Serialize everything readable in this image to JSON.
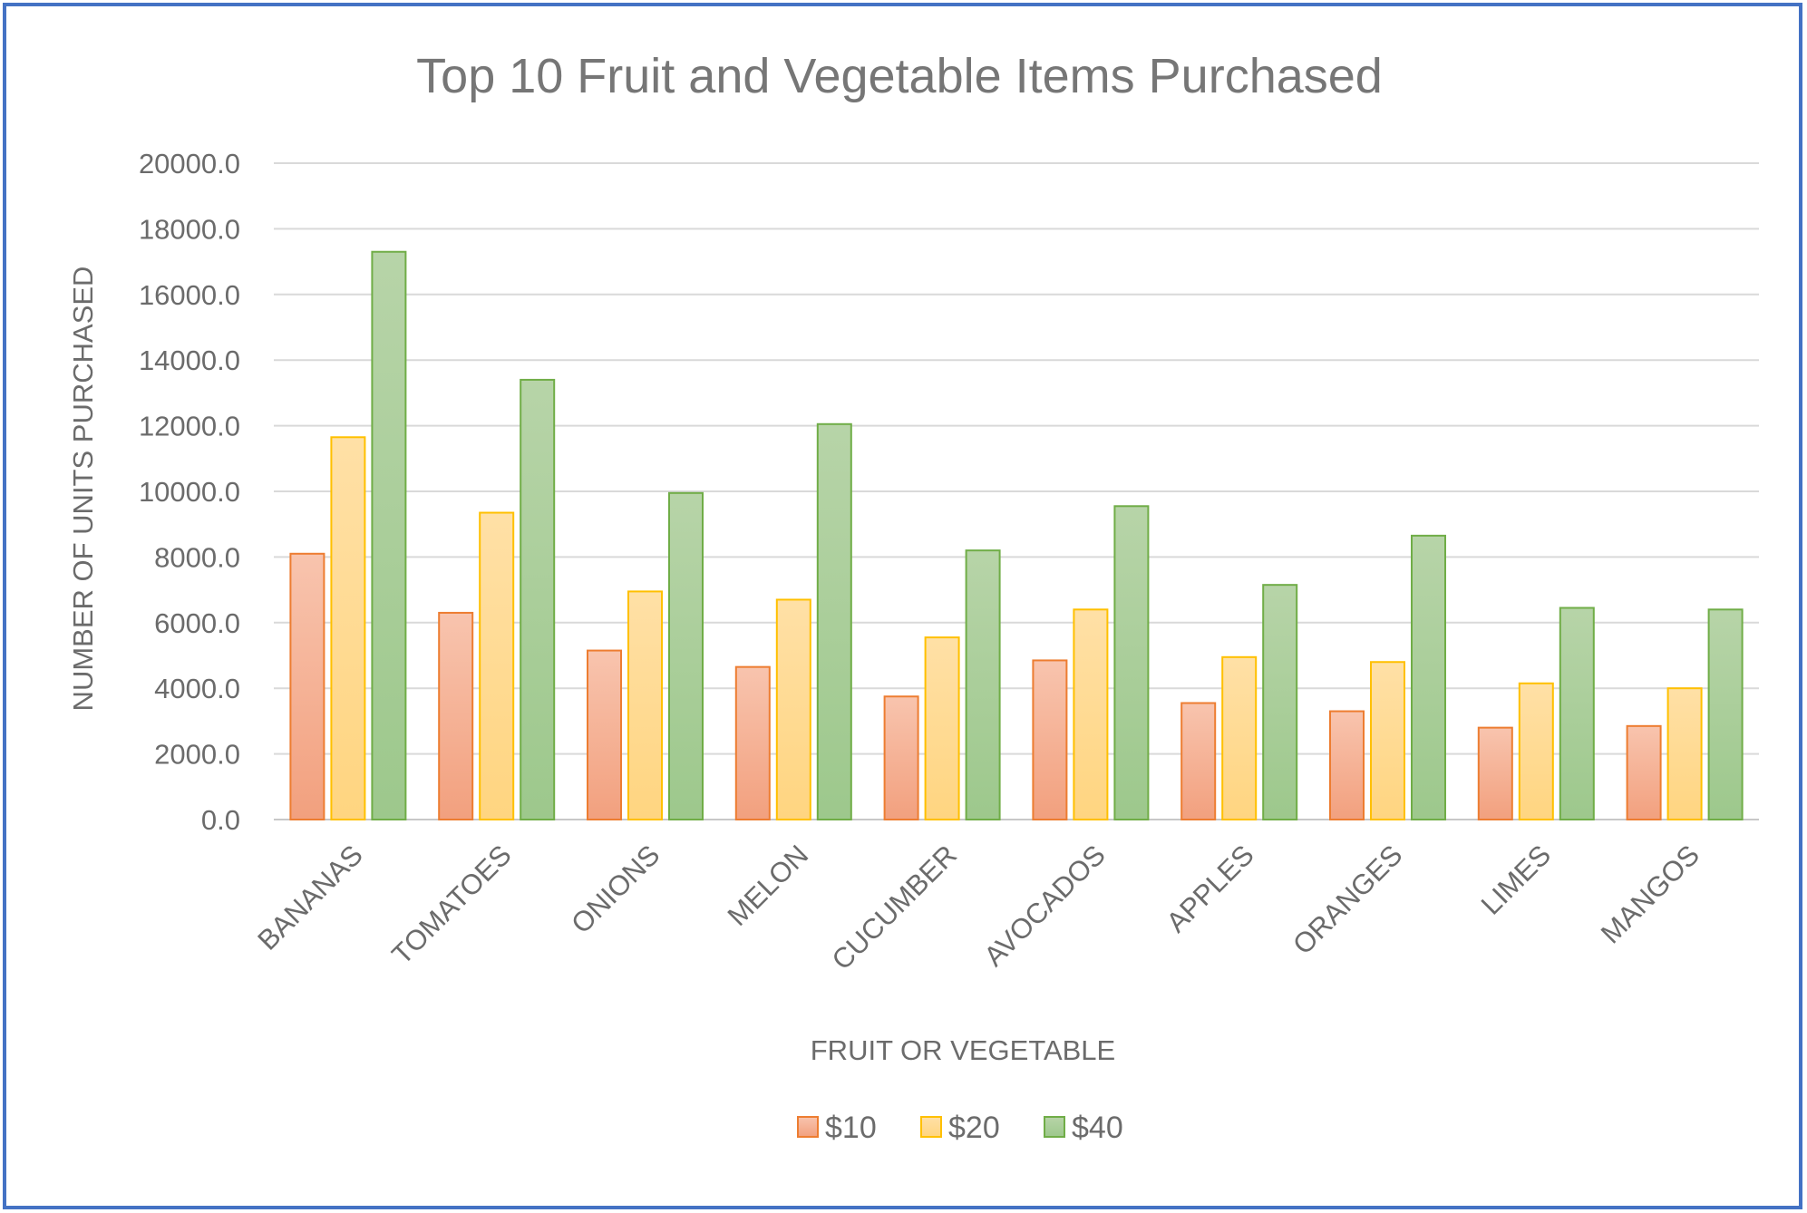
{
  "chart_data": {
    "type": "bar",
    "title": "Top 10 Fruit and Vegetable Items Purchased",
    "xlabel": "FRUIT OR VEGETABLE",
    "ylabel": "NUMBER OF UNITS PURCHASED",
    "ylim": [
      0,
      20000
    ],
    "yticks": [
      "0.0",
      "2000.0",
      "4000.0",
      "6000.0",
      "8000.0",
      "10000.0",
      "12000.0",
      "14000.0",
      "16000.0",
      "18000.0",
      "20000.0"
    ],
    "grid": true,
    "legend_position": "bottom",
    "categories": [
      "BANANAS",
      "TOMATOES",
      "ONIONS",
      "MELON",
      "CUCUMBER",
      "AVOCADOS",
      "APPLES",
      "ORANGES",
      "LIMES",
      "MANGOS"
    ],
    "series": [
      {
        "name": "$10",
        "values": [
          8100,
          6300,
          5150,
          4650,
          3750,
          4850,
          3550,
          3300,
          2800,
          2850
        ],
        "fill_top": "#F8C4AE",
        "fill_bottom": "#F2A07E",
        "stroke": "#ED7D31"
      },
      {
        "name": "$20",
        "values": [
          11650,
          9350,
          6950,
          6700,
          5550,
          6400,
          4950,
          4800,
          4150,
          4000
        ],
        "fill_top": "#FFE0A6",
        "fill_bottom": "#FFD580",
        "stroke": "#FFC000"
      },
      {
        "name": "$40",
        "values": [
          17300,
          13400,
          9950,
          12050,
          8200,
          9550,
          7150,
          8650,
          6450,
          6400
        ],
        "fill_top": "#B7D4A8",
        "fill_bottom": "#9DC88C",
        "stroke": "#70AD47"
      }
    ]
  }
}
